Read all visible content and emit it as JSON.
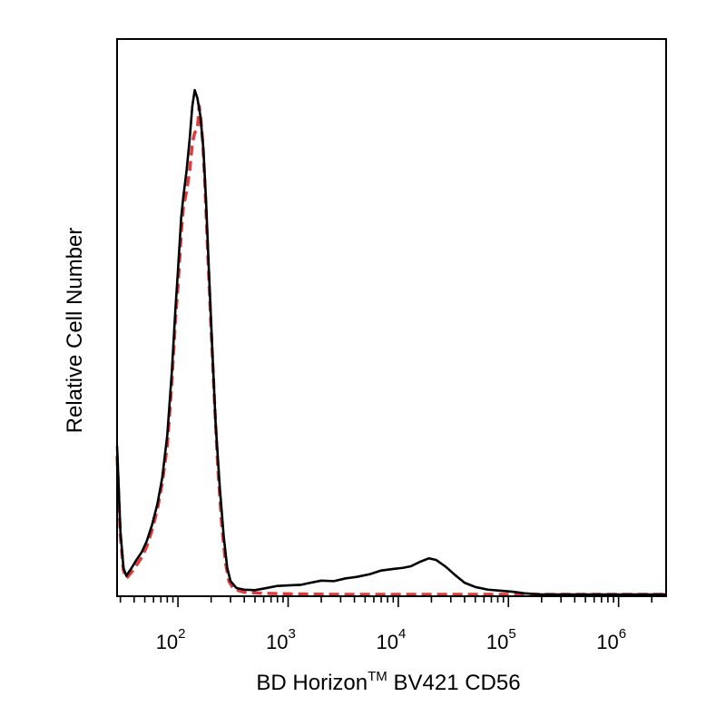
{
  "chart_data": {
    "type": "line",
    "xlabel": "BD Horizon™ BV421 CD56",
    "xlabel_parts": {
      "before": "BD Horizon",
      "superscript": "TM",
      "after": " BV421 CD56"
    },
    "ylabel": "Relative Cell Number",
    "x_scale": "log",
    "xlim": [
      28,
      2700000
    ],
    "ylim": [
      0,
      1
    ],
    "grid": false,
    "legend": "none",
    "x_ticks": [
      {
        "value": 100,
        "base": "10",
        "exp": "2"
      },
      {
        "value": 1000,
        "base": "10",
        "exp": "3"
      },
      {
        "value": 10000,
        "base": "10",
        "exp": "4"
      },
      {
        "value": 100000,
        "base": "10",
        "exp": "5"
      },
      {
        "value": 1000000,
        "base": "10",
        "exp": "6"
      }
    ],
    "series": [
      {
        "color": "#000000",
        "dash": "solid",
        "points": [
          [
            28,
            0.28
          ],
          [
            30,
            0.12
          ],
          [
            32,
            0.05
          ],
          [
            34,
            0.035
          ],
          [
            38,
            0.05
          ],
          [
            42,
            0.065
          ],
          [
            47,
            0.08
          ],
          [
            52,
            0.1
          ],
          [
            58,
            0.13
          ],
          [
            65,
            0.17
          ],
          [
            72,
            0.22
          ],
          [
            80,
            0.3
          ],
          [
            88,
            0.42
          ],
          [
            95,
            0.54
          ],
          [
            100,
            0.61
          ],
          [
            107,
            0.71
          ],
          [
            112,
            0.75
          ],
          [
            120,
            0.8
          ],
          [
            128,
            0.86
          ],
          [
            135,
            0.92
          ],
          [
            142,
            0.95
          ],
          [
            150,
            0.935
          ],
          [
            160,
            0.9
          ],
          [
            170,
            0.84
          ],
          [
            180,
            0.74
          ],
          [
            190,
            0.62
          ],
          [
            205,
            0.46
          ],
          [
            220,
            0.32
          ],
          [
            240,
            0.2
          ],
          [
            260,
            0.11
          ],
          [
            280,
            0.05
          ],
          [
            300,
            0.025
          ],
          [
            340,
            0.012
          ],
          [
            400,
            0.009
          ],
          [
            500,
            0.008
          ],
          [
            600,
            0.011
          ],
          [
            800,
            0.016
          ],
          [
            1000,
            0.017
          ],
          [
            1300,
            0.018
          ],
          [
            1600,
            0.022
          ],
          [
            2000,
            0.026
          ],
          [
            2600,
            0.025
          ],
          [
            3300,
            0.03
          ],
          [
            4200,
            0.033
          ],
          [
            5500,
            0.038
          ],
          [
            7000,
            0.045
          ],
          [
            9000,
            0.048
          ],
          [
            11000,
            0.05
          ],
          [
            13000,
            0.053
          ],
          [
            16000,
            0.062
          ],
          [
            19000,
            0.068
          ],
          [
            22000,
            0.065
          ],
          [
            27000,
            0.052
          ],
          [
            33000,
            0.036
          ],
          [
            40000,
            0.022
          ],
          [
            50000,
            0.014
          ],
          [
            65000,
            0.009
          ],
          [
            85000,
            0.007
          ],
          [
            110000,
            0.005
          ],
          [
            140000,
            0.002
          ],
          [
            200000,
            0.0
          ],
          [
            2700000,
            0.0
          ]
        ]
      },
      {
        "color": "#e03a3a",
        "dash": "dashed",
        "points": [
          [
            28,
            0.26
          ],
          [
            30,
            0.11
          ],
          [
            32,
            0.045
          ],
          [
            34,
            0.03
          ],
          [
            38,
            0.042
          ],
          [
            42,
            0.055
          ],
          [
            47,
            0.07
          ],
          [
            52,
            0.09
          ],
          [
            58,
            0.12
          ],
          [
            65,
            0.16
          ],
          [
            72,
            0.21
          ],
          [
            80,
            0.28
          ],
          [
            88,
            0.4
          ],
          [
            95,
            0.52
          ],
          [
            100,
            0.58
          ],
          [
            107,
            0.68
          ],
          [
            112,
            0.73
          ],
          [
            120,
            0.76
          ],
          [
            128,
            0.8
          ],
          [
            135,
            0.85
          ],
          [
            142,
            0.87
          ],
          [
            150,
            0.875
          ],
          [
            156,
            0.92
          ],
          [
            162,
            0.89
          ],
          [
            168,
            0.85
          ],
          [
            175,
            0.78
          ],
          [
            185,
            0.66
          ],
          [
            200,
            0.5
          ],
          [
            215,
            0.36
          ],
          [
            230,
            0.24
          ],
          [
            250,
            0.13
          ],
          [
            270,
            0.06
          ],
          [
            290,
            0.025
          ],
          [
            320,
            0.01
          ],
          [
            400,
            0.004
          ],
          [
            600,
            0.002
          ],
          [
            1000,
            0.001
          ],
          [
            3000,
            0.0
          ],
          [
            10000,
            0.0
          ],
          [
            50000,
            0.0
          ],
          [
            200000,
            0.0
          ],
          [
            2700000,
            0.0
          ]
        ]
      }
    ]
  }
}
